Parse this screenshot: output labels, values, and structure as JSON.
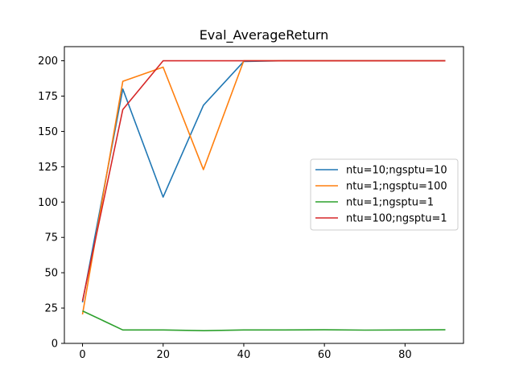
{
  "chart_data": {
    "type": "line",
    "title": "Eval_AverageReturn",
    "xlabel": "",
    "ylabel": "",
    "xlim": [
      -4.5,
      94.5
    ],
    "ylim": [
      0,
      210
    ],
    "xticks": [
      0,
      20,
      40,
      60,
      80
    ],
    "yticks": [
      0,
      25,
      50,
      75,
      100,
      125,
      150,
      175,
      200
    ],
    "grid": false,
    "legend_position": "center-right",
    "series": [
      {
        "name": "ntu=10;ngsptu=10",
        "color": "#1f77b4",
        "x": [
          0,
          10,
          20,
          30,
          40,
          50,
          60,
          70,
          80,
          90
        ],
        "y": [
          29,
          180,
          103.5,
          168.5,
          199.5,
          200,
          200,
          200,
          200,
          200
        ]
      },
      {
        "name": "ntu=1;ngsptu=100",
        "color": "#ff7f0e",
        "x": [
          0,
          10,
          20,
          30,
          40,
          50,
          60,
          70,
          80,
          90
        ],
        "y": [
          20.5,
          185.5,
          195.5,
          123,
          200,
          200,
          200,
          200,
          200,
          200
        ]
      },
      {
        "name": "ntu=1;ngsptu=1",
        "color": "#2ca02c",
        "x": [
          0,
          10,
          20,
          30,
          40,
          50,
          60,
          70,
          80,
          90
        ],
        "y": [
          23,
          9.5,
          9.5,
          9,
          9.5,
          9.5,
          9.6,
          9.4,
          9.5,
          9.6
        ]
      },
      {
        "name": "ntu=100;ngsptu=1",
        "color": "#d62728",
        "x": [
          0,
          10,
          20,
          30,
          40,
          50,
          60,
          70,
          80,
          90
        ],
        "y": [
          30,
          165.5,
          200,
          200,
          200,
          200,
          200,
          200,
          200,
          200
        ]
      }
    ]
  }
}
